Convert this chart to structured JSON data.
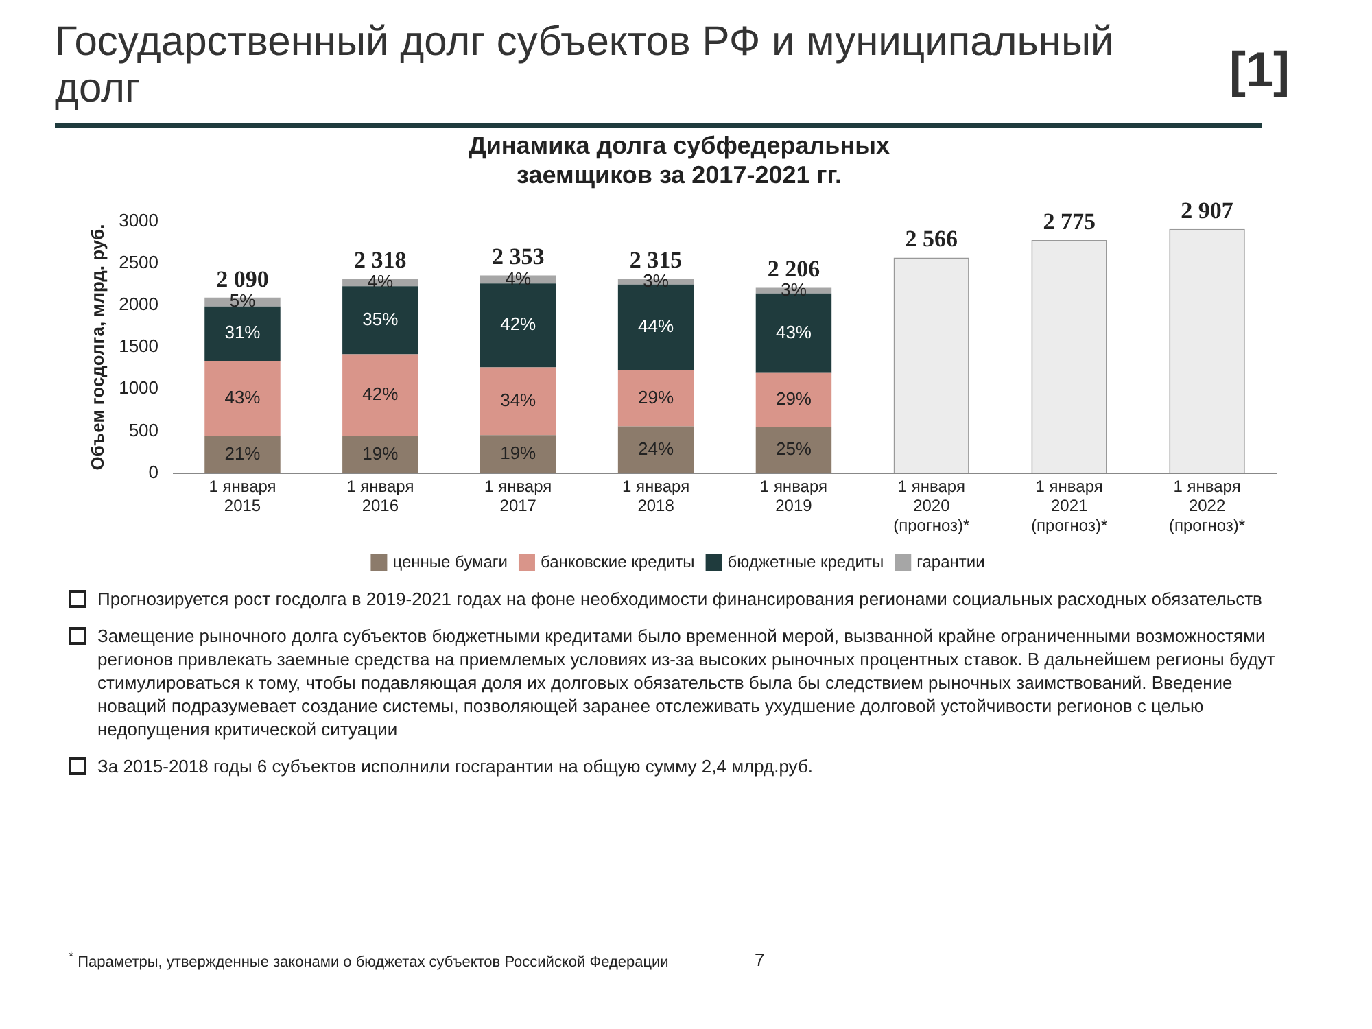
{
  "chart_data": {
    "type": "bar",
    "title": "Государственный долг субъектов РФ и муниципальный долг",
    "subtitle": "Динамика долга субфедеральных заемщиков за 2017-2021 гг.",
    "ylabel": "Объем госдолга, млрд. руб.",
    "categories": [
      "1 января\n2015",
      "1 января\n2016",
      "1 января\n2017",
      "1 января\n2018",
      "1 января\n2019",
      "1 января\n2020\n(прогноз)*",
      "1 января\n2021\n(прогноз)*",
      "1 января\n2022\n(прогноз)*"
    ],
    "stacked": true,
    "ylim": [
      0,
      3000
    ],
    "yticks": [
      0,
      500,
      1000,
      1500,
      2000,
      2500,
      3000
    ],
    "legend": "bottom",
    "series": [
      {
        "name": "ценные бумаги",
        "color": "#8c7b6b",
        "values": [
          438,
          440,
          452,
          556,
          552,
          null,
          null,
          null
        ]
      },
      {
        "name": "банковские кредиты",
        "color": "#d9958a",
        "values": [
          899,
          974,
          808,
          671,
          640,
          null,
          null,
          null
        ]
      },
      {
        "name": "бюджетные кредиты",
        "color": "#1f3b3d",
        "values": [
          648,
          811,
          998,
          1019,
          948,
          null,
          null,
          null
        ]
      },
      {
        "name": "гарантии",
        "color": "#a6a6a6",
        "values": [
          105,
          93,
          95,
          69,
          66,
          null,
          null,
          null
        ]
      },
      {
        "color": "#ececec",
        "values": [
          null,
          null,
          null,
          null,
          null,
          2566,
          2775,
          2907
        ]
      }
    ],
    "totals": [
      "2 090",
      "2 318",
      "2 353",
      "2 315",
      "2 206",
      "2 566",
      "2 775",
      "2 907"
    ],
    "annotations": [
      "[1]",
      "Прогнозируется рост госдолга в 2019-2021 годах на фоне необходимости финансирования регионами социальных расходных обязательств",
      "Замещение рыночного долга субъектов бюджетными кредитами было временной мерой, вызванной крайне ограниченными возможностями регионов привлекать заемные средства на приемлемых условиях из-за высоких рыночных процентных ставок. В дальнейшем регионы будут стимулироваться к тому, чтобы подавляющая доля их долговых обязательств была бы следствием рыночных заимствований. Введение новаций подразумевает создание системы, позволяющей заранее отслеживать ухудшение долговой устойчивости регионов с целью недопущения критической ситуации",
      "За 2015-2018 годы 6 субъектов исполнили госгарантии на общую сумму 2,4 млрд.руб.",
      "$^{*}$ Параметры, утвержденные законами о бюджетах субъектов Российской Федерации",
      "7",
      "21%",
      "43%",
      "31%",
      "5%",
      "19%",
      "42%",
      "35%",
      "4%",
      "19%",
      "34%",
      "42%",
      "4%",
      "24%",
      "29%",
      "44%",
      "3%",
      "25%",
      "29%",
      "43%",
      "3%"
    ]
  }
}
